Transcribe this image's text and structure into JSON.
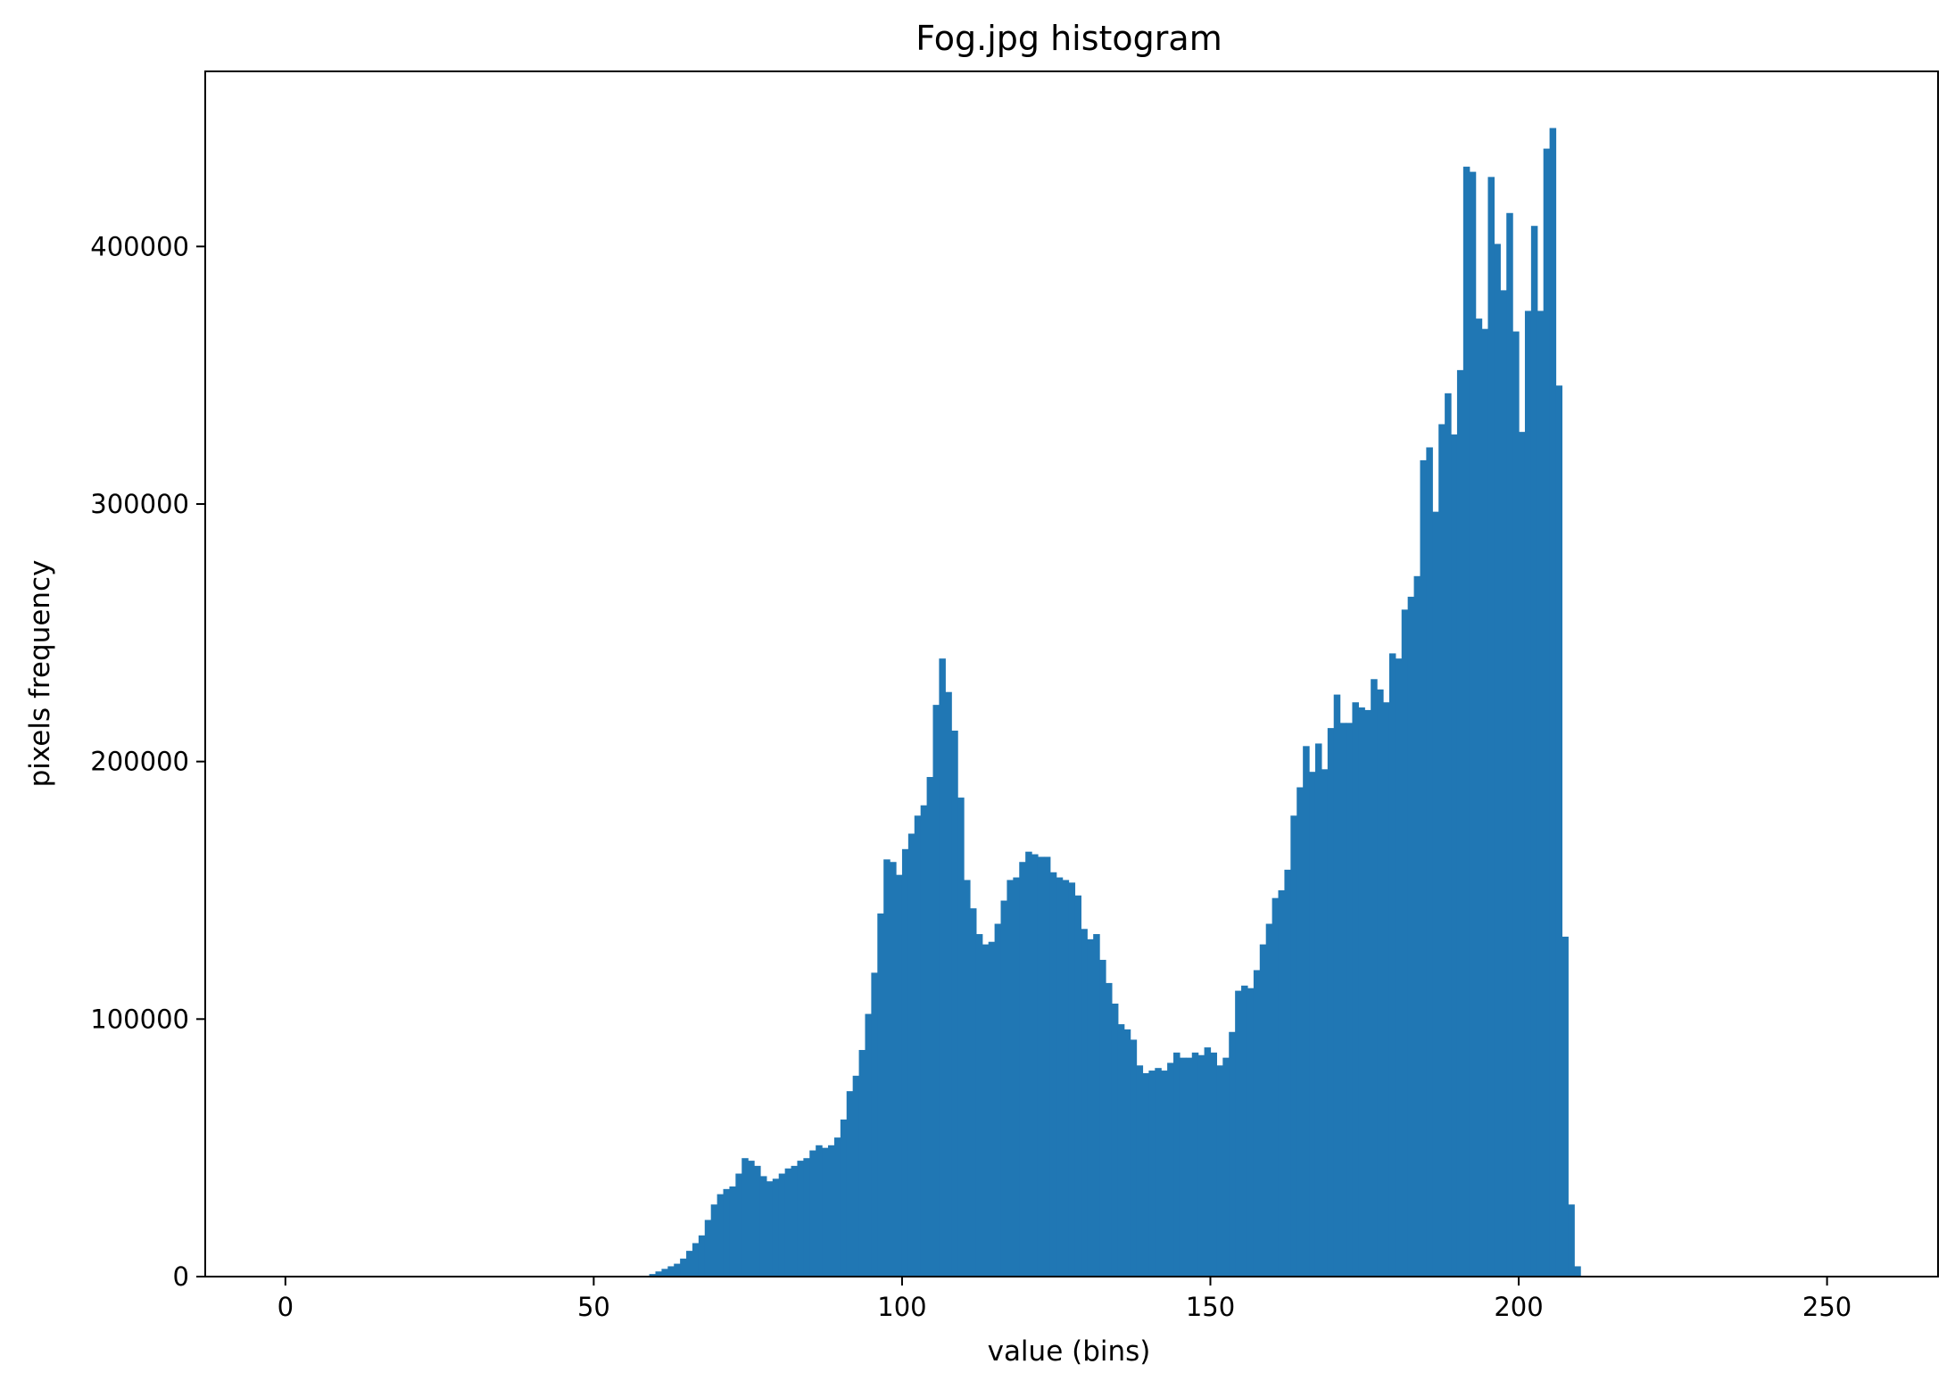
{
  "colors": {
    "background": "#ffffff",
    "bar": "#2077b4",
    "axis": "#000000"
  },
  "chart_data": {
    "type": "bar",
    "title": "Fog.jpg histogram",
    "xlabel": "value (bins)",
    "ylabel": "pixels frequency",
    "xlim": [
      -13,
      268
    ],
    "ylim": [
      0,
      468000
    ],
    "xticks": [
      0,
      50,
      100,
      150,
      200,
      250
    ],
    "xtick_labels": [
      "0",
      "50",
      "100",
      "150",
      "200",
      "250"
    ],
    "yticks": [
      0,
      100000,
      200000,
      300000,
      400000
    ],
    "ytick_labels": [
      "0",
      "100000",
      "200000",
      "300000",
      "400000"
    ],
    "grid": false,
    "legend": "none",
    "bin_width": 1,
    "x_start": 59,
    "values": [
      1000,
      2000,
      3000,
      4000,
      5000,
      7000,
      10000,
      13000,
      16000,
      22000,
      28000,
      32000,
      34000,
      35000,
      40000,
      46000,
      45000,
      43000,
      39000,
      37000,
      38000,
      40000,
      42000,
      43000,
      45000,
      46000,
      49000,
      51000,
      50000,
      51000,
      54000,
      61000,
      72000,
      78000,
      88000,
      102000,
      118000,
      141000,
      162000,
      161000,
      156000,
      166000,
      172000,
      179000,
      183000,
      194000,
      222000,
      240000,
      227000,
      212000,
      186000,
      154000,
      143000,
      133000,
      129000,
      130000,
      137000,
      146000,
      154000,
      155000,
      161000,
      165000,
      164000,
      163000,
      163000,
      157000,
      155000,
      154000,
      153000,
      148000,
      135000,
      131000,
      133000,
      123000,
      114000,
      106000,
      98000,
      96000,
      92000,
      82000,
      79000,
      80000,
      81000,
      80000,
      83000,
      87000,
      85000,
      85000,
      87000,
      86000,
      89000,
      87000,
      82000,
      85000,
      95000,
      111000,
      113000,
      112000,
      119000,
      129000,
      137000,
      147000,
      150000,
      158000,
      179000,
      190000,
      206000,
      196000,
      207000,
      197000,
      213000,
      226000,
      215000,
      215000,
      223000,
      221000,
      220000,
      232000,
      228000,
      223000,
      242000,
      240000,
      259000,
      264000,
      272000,
      317000,
      322000,
      297000,
      331000,
      343000,
      327000,
      352000,
      431000,
      429000,
      372000,
      368000,
      427000,
      401000,
      383000,
      413000,
      367000,
      328000,
      375000,
      408000,
      375000,
      438000,
      446000,
      346000,
      132000,
      28000,
      4000
    ]
  }
}
